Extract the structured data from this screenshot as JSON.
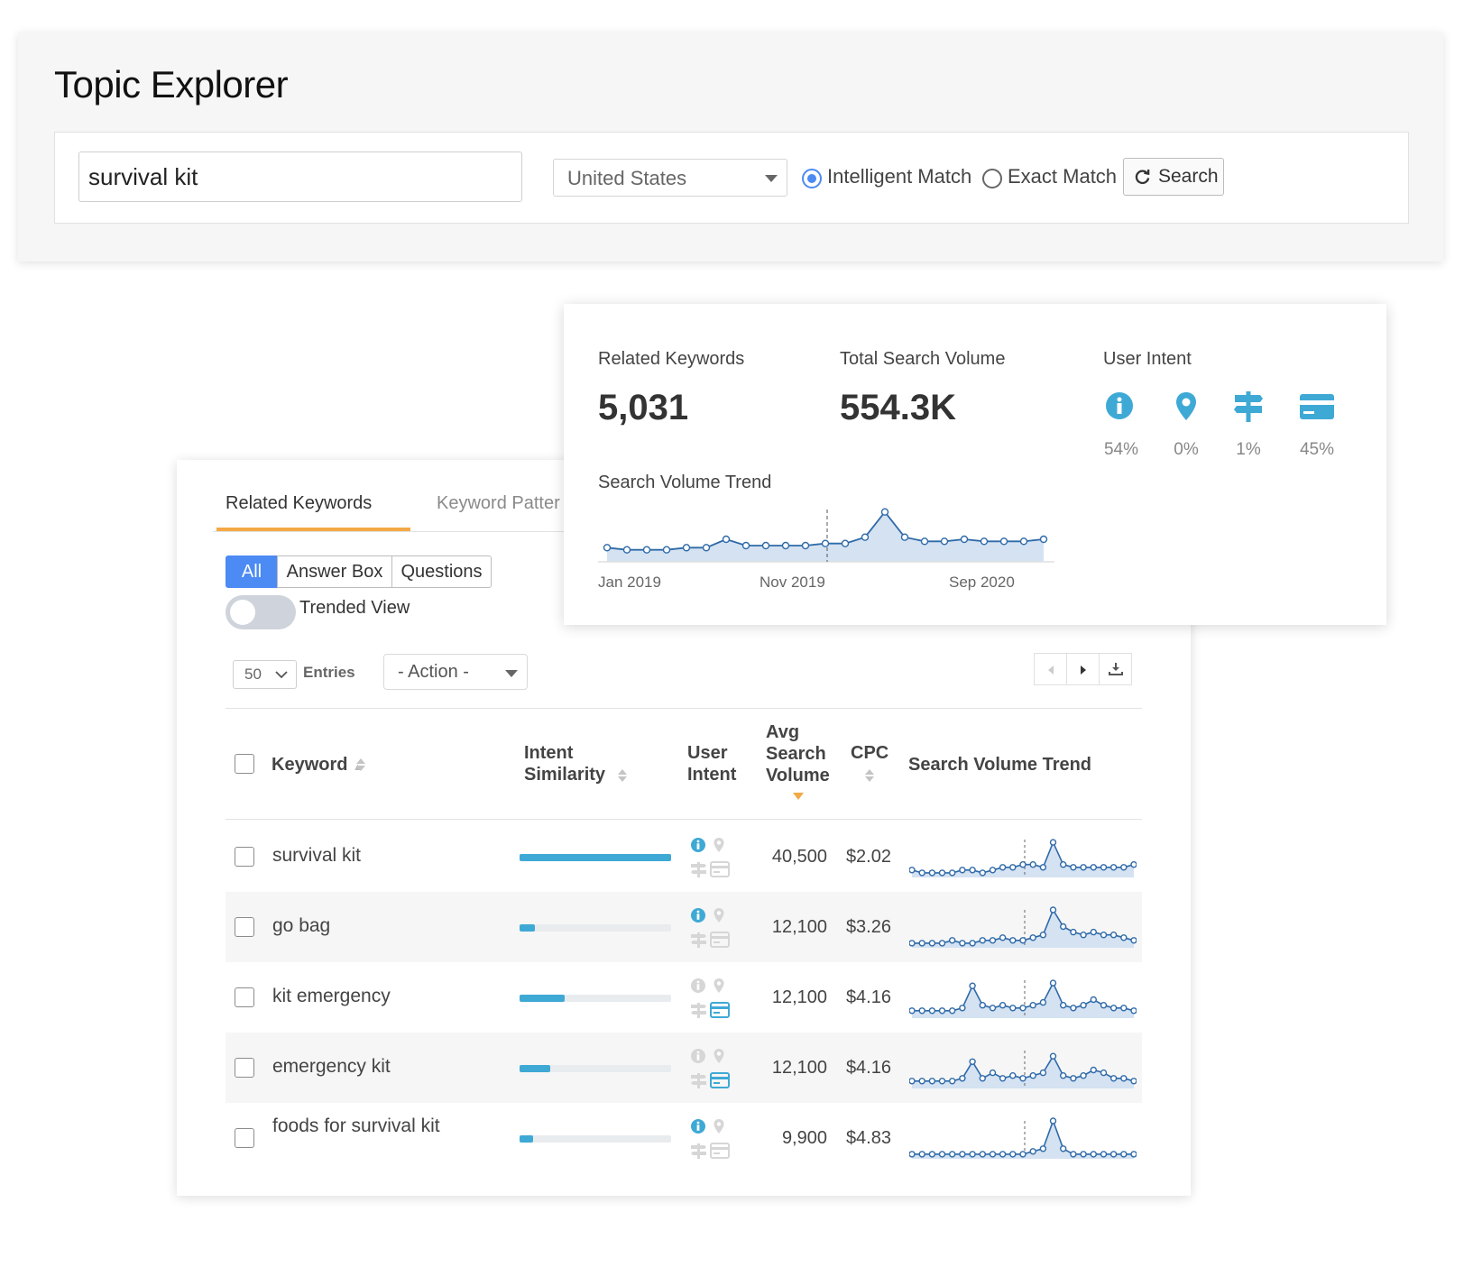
{
  "header": {
    "title": "Topic Explorer",
    "keyword_value": "survival kit",
    "country": "United States",
    "match_options": [
      {
        "label": "Intelligent Match",
        "selected": true
      },
      {
        "label": "Exact Match",
        "selected": false
      }
    ],
    "search_label": "Search"
  },
  "tabs": [
    {
      "label": "Related Keywords",
      "active": true
    },
    {
      "label": "Keyword Patter",
      "active": false
    }
  ],
  "filters": {
    "segments": [
      "All",
      "Answer Box",
      "Questions"
    ],
    "active_segment": "All",
    "trended_view_label": "Trended View",
    "trended_view_on": false
  },
  "controls": {
    "entries_value": "50",
    "entries_label": "Entries",
    "action_label": "- Action -"
  },
  "table": {
    "columns": {
      "keyword": "Keyword",
      "intent_similarity_line1": "Intent",
      "intent_similarity_line2": "Similarity",
      "user_intent_line1": "User",
      "user_intent_line2": "Intent",
      "avg_volume_line1": "Avg",
      "avg_volume_line2": "Search",
      "avg_volume_line3": "Volume",
      "cpc": "CPC",
      "trend": "Search Volume Trend"
    },
    "rows": [
      {
        "keyword": "survival kit",
        "similarity": 1.0,
        "volume": "40,500",
        "cpc": "$2.02",
        "intents": {
          "informational": true,
          "navigational": false,
          "commercial": false,
          "transactional": false
        },
        "trend": [
          2,
          1,
          1,
          1,
          1,
          2,
          2,
          1,
          2,
          3,
          3,
          4,
          4,
          3,
          12,
          4,
          3,
          3,
          3,
          3,
          3,
          3,
          4
        ]
      },
      {
        "keyword": "go bag",
        "similarity": 0.1,
        "volume": "12,100",
        "cpc": "$3.26",
        "intents": {
          "informational": true,
          "navigational": false,
          "commercial": false,
          "transactional": false
        },
        "trend": [
          1,
          1,
          1,
          1,
          2,
          1,
          1,
          2,
          2,
          3,
          2,
          2,
          3,
          4,
          13,
          7,
          5,
          4,
          5,
          4,
          4,
          3,
          2
        ]
      },
      {
        "keyword": "kit emergency",
        "similarity": 0.3,
        "volume": "12,100",
        "cpc": "$4.16",
        "intents": {
          "informational": false,
          "navigational": false,
          "commercial": false,
          "transactional": true
        },
        "trend": [
          2,
          2,
          2,
          2,
          2,
          3,
          11,
          4,
          3,
          4,
          3,
          3,
          4,
          5,
          12,
          4,
          3,
          4,
          6,
          4,
          3,
          3,
          2
        ]
      },
      {
        "keyword": "emergency kit",
        "similarity": 0.2,
        "volume": "12,100",
        "cpc": "$4.16",
        "intents": {
          "informational": false,
          "navigational": false,
          "commercial": false,
          "transactional": true
        },
        "trend": [
          2,
          2,
          2,
          2,
          2,
          3,
          9,
          3,
          5,
          3,
          4,
          3,
          4,
          5,
          11,
          4,
          3,
          4,
          6,
          5,
          3,
          3,
          2
        ]
      },
      {
        "keyword": "foods for survival kit",
        "similarity": 0.09,
        "volume": "9,900",
        "cpc": "$4.83",
        "intents": {
          "informational": true,
          "navigational": false,
          "commercial": false,
          "transactional": false
        },
        "trend": [
          1,
          1,
          1,
          1,
          1,
          1,
          1,
          1,
          1,
          1,
          1,
          1,
          2,
          3,
          13,
          3,
          1,
          1,
          1,
          1,
          1,
          1,
          1
        ]
      }
    ]
  },
  "summary": {
    "related_keywords_label": "Related Keywords",
    "related_keywords_value": "5,031",
    "total_volume_label": "Total Search Volume",
    "total_volume_value": "554.3K",
    "user_intent_label": "User Intent",
    "intent_breakdown": [
      {
        "icon": "info-icon",
        "pct": "54%"
      },
      {
        "icon": "location-pin-icon",
        "pct": "0%"
      },
      {
        "icon": "signpost-icon",
        "pct": "1%"
      },
      {
        "icon": "credit-card-icon",
        "pct": "45%"
      }
    ],
    "trend_label": "Search Volume Trend",
    "trend_axis": [
      "Jan 2019",
      "Nov 2019",
      "Sep 2020"
    ],
    "trend_values": [
      5,
      4,
      4,
      4,
      5,
      5,
      9,
      6,
      6,
      6,
      6,
      7,
      7,
      10,
      22,
      10,
      8,
      8,
      9,
      8,
      8,
      8,
      9
    ],
    "accent_color": "#4c8af4",
    "intent_icon_color": "#3fa9d5",
    "trend_line_color": "#2f6aa8"
  }
}
